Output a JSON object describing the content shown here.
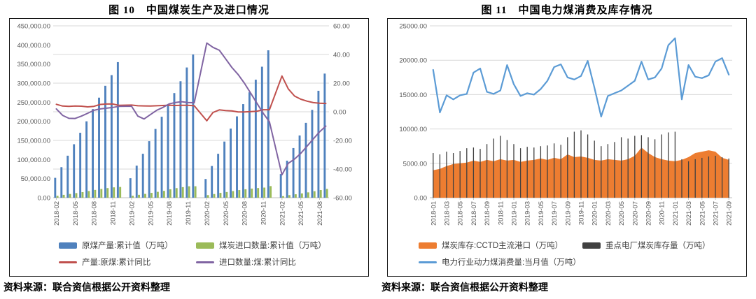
{
  "figures": [
    {
      "title": "图 10　中国煤炭生产及进口情况",
      "source": "资料来源：联合资信根据公开资料整理"
    },
    {
      "title": "图 11　中国电力煤消费及库存情况",
      "source": "资料来源：联合资信根据公开资料整理"
    }
  ],
  "chart_data": [
    {
      "type": "bar",
      "subtype": "combo bar+line, dual y-axis",
      "title": "图 10　中国煤炭生产及进口情况",
      "x_start": "2018-02",
      "x_slots": 44,
      "y_left": {
        "min": 0,
        "max": 450000,
        "step": 50000,
        "format": "thousands-2dp"
      },
      "y_right": {
        "min": -60,
        "max": 60,
        "step": 20,
        "format": "2dp"
      },
      "grid": "horizontal, aligned to right axis",
      "legend_position": "bottom",
      "x_tick_labels": [
        "2018-02",
        "2018-05",
        "2018-08",
        "2018-11",
        "2019-02",
        "2019-05",
        "2019-08",
        "2019-11",
        "2020-02",
        "2020-05",
        "2020-08",
        "2020-11",
        "2021-02",
        "2021-05",
        "2021-08"
      ],
      "months": [
        "2018-02",
        "2018-03",
        "2018-04",
        "2018-05",
        "2018-06",
        "2018-07",
        "2018-08",
        "2018-09",
        "2018-10",
        "2018-11",
        "2018-12",
        "2019-02",
        "2019-03",
        "2019-04",
        "2019-05",
        "2019-06",
        "2019-07",
        "2019-08",
        "2019-09",
        "2019-10",
        "2019-11",
        "2019-12",
        "2020-02",
        "2020-03",
        "2020-04",
        "2020-05",
        "2020-06",
        "2020-07",
        "2020-08",
        "2020-09",
        "2020-10",
        "2020-11",
        "2020-12",
        "2021-02",
        "2021-03",
        "2021-04",
        "2021-05",
        "2021-06",
        "2021-07",
        "2021-08",
        "2021-09"
      ],
      "series": [
        {
          "id": "raw-coal-production-bars",
          "name": "原煤产量:累计值（万吨）",
          "type": "bar",
          "axis": "left",
          "color": "#4F81BD",
          "values": [
            52000,
            80000,
            110000,
            140000,
            170000,
            200000,
            232000,
            262000,
            293000,
            321000,
            355000,
            51000,
            84000,
            115000,
            148000,
            180000,
            212000,
            244000,
            274000,
            305000,
            341000,
            375000,
            49000,
            83000,
            115000,
            147000,
            181000,
            213000,
            245000,
            276000,
            309000,
            343000,
            386000,
            62000,
            97000,
            130000,
            163000,
            196000,
            230000,
            280000,
            325000
          ]
        },
        {
          "id": "coal-import-bars",
          "name": "煤炭进口数量:累计值（万吨）",
          "type": "bar",
          "axis": "left",
          "color": "#9BBB59",
          "values": [
            4900,
            7500,
            9800,
            12100,
            14600,
            17500,
            20400,
            22900,
            25200,
            27100,
            28100,
            5100,
            7600,
            10000,
            12700,
            15400,
            17900,
            22000,
            25100,
            27700,
            29900,
            30000,
            6800,
            9600,
            12700,
            14900,
            17400,
            20000,
            22100,
            23900,
            25300,
            26500,
            30400,
            4100,
            6800,
            9000,
            11300,
            14000,
            17000,
            20100,
            23000
          ]
        },
        {
          "id": "production-yoy-line",
          "name": "产量:原煤:累计同比",
          "type": "line",
          "axis": "right",
          "color": "#C0504D",
          "values": [
            5.2,
            4.0,
            3.8,
            4.0,
            3.9,
            3.4,
            3.8,
            5.1,
            5.4,
            5.4,
            4.5,
            4.7,
            4.2,
            4.1,
            4.0,
            4.2,
            4.4,
            4.6,
            4.4,
            4.5,
            4.5,
            4.2,
            -6.3,
            -0.5,
            1.3,
            0.9,
            0.6,
            -0.1,
            -0.1,
            0.1,
            0.4,
            1.4,
            1.4,
            25.0,
            16.0,
            11.0,
            8.8,
            7.4,
            6.4,
            6.0,
            5.8
          ]
        },
        {
          "id": "import-yoy-line",
          "name": "进口数量:煤:累计同比",
          "type": "line",
          "axis": "right",
          "color": "#8064A2",
          "values": [
            2.0,
            -2.5,
            -4.6,
            -4.7,
            -3.0,
            -1.0,
            1.0,
            2.0,
            2.5,
            3.0,
            3.8,
            3.9,
            -3.0,
            -5.0,
            -2.0,
            1.0,
            3.0,
            5.5,
            6.5,
            7.0,
            6.5,
            6.3,
            48.0,
            45.0,
            43.0,
            37.0,
            31.0,
            26.0,
            20.0,
            13.0,
            6.0,
            -1.0,
            -7.0,
            -44.0,
            -36.0,
            -33.0,
            -29.0,
            -24.0,
            -19.0,
            -14.0,
            -10.0
          ]
        }
      ],
      "legend_order": [
        [
          0,
          1
        ],
        [
          2,
          3
        ]
      ]
    },
    {
      "type": "area",
      "subtype": "combo area+thin-bar+line, single y-axis",
      "title": "图 11　中国电力煤消费及库存情况",
      "x_start": "2018-01",
      "x_slots": 45,
      "y_left": {
        "min": 0,
        "max": 25000,
        "step": 5000,
        "format": "plain-2dp"
      },
      "grid": "horizontal",
      "legend_position": "bottom",
      "x_tick_labels": [
        "2018-01",
        "2018-03",
        "2018-05",
        "2018-07",
        "2018-09",
        "2018-11",
        "2019-01",
        "2019-03",
        "2019-05",
        "2019-07",
        "2019-09",
        "2019-11",
        "2020-01",
        "2020-03",
        "2020-05",
        "2020-07",
        "2020-09",
        "2020-11",
        "2021-01",
        "2021-03",
        "2021-05",
        "2021-07",
        "2021-09"
      ],
      "months": [
        "2018-01",
        "2018-02",
        "2018-03",
        "2018-04",
        "2018-05",
        "2018-06",
        "2018-07",
        "2018-08",
        "2018-09",
        "2018-10",
        "2018-11",
        "2018-12",
        "2019-01",
        "2019-02",
        "2019-03",
        "2019-04",
        "2019-05",
        "2019-06",
        "2019-07",
        "2019-08",
        "2019-09",
        "2019-10",
        "2019-11",
        "2019-12",
        "2020-01",
        "2020-02",
        "2020-03",
        "2020-04",
        "2020-05",
        "2020-06",
        "2020-07",
        "2020-08",
        "2020-09",
        "2020-10",
        "2020-11",
        "2020-12",
        "2021-01",
        "2021-02",
        "2021-03",
        "2021-04",
        "2021-05",
        "2021-06",
        "2021-07",
        "2021-08",
        "2021-09"
      ],
      "series": [
        {
          "id": "port-inventory-area",
          "name": "煤炭库存:CCTD主流港口（万吨）",
          "type": "area",
          "color": "#ED7D31",
          "values": [
            4000,
            4200,
            4600,
            4900,
            5000,
            5100,
            5400,
            5200,
            5500,
            5300,
            5600,
            5400,
            5500,
            5200,
            5400,
            5500,
            5700,
            5500,
            5800,
            5600,
            6300,
            5900,
            6000,
            5800,
            5500,
            5400,
            5600,
            5500,
            5400,
            5600,
            6100,
            7300,
            6500,
            5900,
            5600,
            5400,
            5300,
            5500,
            5900,
            6500,
            6700,
            6900,
            6700,
            5800,
            5500
          ]
        },
        {
          "id": "plant-inventory-bars",
          "name": "重点电厂煤炭库存量（万吨）",
          "type": "bar-thin",
          "color": "#404040",
          "values": [
            6500,
            6300,
            6700,
            6500,
            6800,
            7200,
            7300,
            7100,
            7800,
            8600,
            9000,
            8400,
            7800,
            7200,
            7400,
            7300,
            7500,
            7600,
            7900,
            7700,
            8800,
            9600,
            9800,
            9200,
            8300,
            7500,
            7800,
            8100,
            8800,
            8600,
            9000,
            9100,
            8800,
            8500,
            9200,
            9500,
            9600,
            5600,
            5300,
            5600,
            5800,
            6000,
            6100,
            5900,
            5700
          ]
        },
        {
          "id": "consumption-line",
          "name": "电力行业动力煤消费量:当月值（万吨）",
          "type": "line",
          "color": "#5B9BD5",
          "values": [
            18600,
            12400,
            14900,
            14300,
            14900,
            15100,
            18200,
            18800,
            15400,
            15100,
            15600,
            19300,
            16500,
            14800,
            15200,
            15000,
            15800,
            17000,
            19000,
            19400,
            17500,
            17200,
            17700,
            19900,
            16000,
            11800,
            14800,
            15200,
            15600,
            16300,
            17000,
            19800,
            17200,
            17500,
            18800,
            22200,
            23200,
            14300,
            19300,
            17600,
            17400,
            17800,
            19800,
            20300,
            17900
          ]
        }
      ],
      "legend_order": [
        [
          0,
          1
        ],
        [
          2
        ]
      ]
    }
  ]
}
